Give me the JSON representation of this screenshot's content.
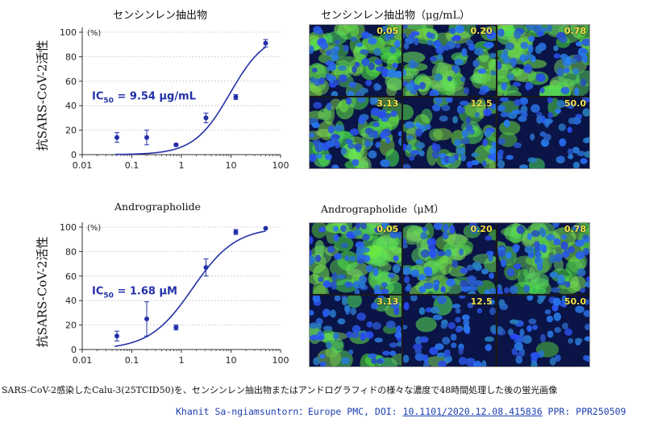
{
  "panels": [
    {
      "chart_title": "センシンレン抽出物",
      "ylabel": "抗SARS-CoV-2活性",
      "ic50_prefix": "IC",
      "ic50_sub": "50",
      "ic50_value": " = 9.54 µg/mL",
      "image_title": "センシンレン抽出物（μg/mL）",
      "image_labels": [
        "0.05",
        "0.20",
        "0.78",
        "3.13",
        "12.5",
        "50.0"
      ],
      "image_inhibition": [
        0.15,
        0.15,
        0.1,
        0.3,
        0.5,
        0.92
      ]
    },
    {
      "chart_title": "Andrographolide",
      "ylabel": "抗SARS-CoV-2活性",
      "ic50_prefix": "IC",
      "ic50_sub": "50",
      "ic50_value": " = 1.68 µM",
      "image_title": "Andrographolide（μM）",
      "image_labels": [
        "0.05",
        "0.20",
        "0.78",
        "3.13",
        "12.5",
        "50.0"
      ],
      "image_inhibition": [
        0.12,
        0.25,
        0.2,
        0.65,
        0.95,
        0.99
      ]
    }
  ],
  "chart_data": [
    {
      "type": "scatter",
      "title": "センシンレン抽出物",
      "ylabel": "抗SARS-CoV-2活性",
      "y_unit": "(%)",
      "xscale": "log",
      "xlim": [
        0.01,
        100
      ],
      "ylim": [
        0,
        100
      ],
      "xticks": [
        "0.01",
        "0.1",
        "1",
        "10",
        "100"
      ],
      "yticks": [
        "0",
        "20",
        "40",
        "60",
        "80",
        "100"
      ],
      "points": [
        {
          "x": 0.05,
          "y": 14,
          "err": 4
        },
        {
          "x": 0.2,
          "y": 14,
          "err": 6
        },
        {
          "x": 0.78,
          "y": 8,
          "err": 1
        },
        {
          "x": 3.13,
          "y": 30,
          "err": 4
        },
        {
          "x": 12.5,
          "y": 47,
          "err": 2
        },
        {
          "x": 50,
          "y": 91,
          "err": 3
        }
      ],
      "fit": {
        "bottom": 0,
        "top": 100,
        "ic50": 9.54,
        "hill": 1.2,
        "xmin": 0.045,
        "xmax": 50
      },
      "annotation": "IC50 = 9.54 µg/mL",
      "grid": true
    },
    {
      "type": "scatter",
      "title": "Andrographolide",
      "ylabel": "抗SARS-CoV-2活性",
      "y_unit": "(%)",
      "xscale": "log",
      "xlim": [
        0.01,
        100
      ],
      "ylim": [
        0,
        100
      ],
      "xticks": [
        "0.01",
        "0.1",
        "1",
        "10",
        "100"
      ],
      "yticks": [
        "0",
        "20",
        "40",
        "60",
        "80",
        "100"
      ],
      "points": [
        {
          "x": 0.05,
          "y": 11,
          "err": 4
        },
        {
          "x": 0.2,
          "y": 25,
          "err": 14
        },
        {
          "x": 0.78,
          "y": 18,
          "err": 2
        },
        {
          "x": 3.13,
          "y": 67,
          "err": 7
        },
        {
          "x": 12.5,
          "y": 96,
          "err": 2
        },
        {
          "x": 50,
          "y": 99,
          "err": 0
        }
      ],
      "fit": {
        "bottom": 0,
        "top": 100,
        "ic50": 1.68,
        "hill": 1.0,
        "xmin": 0.045,
        "xmax": 50
      },
      "annotation": "IC50 = 1.68 µM",
      "grid": true
    }
  ],
  "caption": "SARS-CoV-2感染したCalu-3(25TCID50)を、センシンレン抽出物またはアンドログラフィドの様々な濃度で48時間処理した後の蛍光画像",
  "credit": {
    "prefix": "Khanit Sa-ngiamsuntorn：Europe PMC, DOI: ",
    "doi": "10.1101/2020.12.08.415836",
    "suffix": " PPR: PPR250509"
  },
  "colors": {
    "series": "#2330a8",
    "cell_label": "#f5e24a",
    "nuclei": "#2a4de0",
    "infected": "#4fd84a"
  }
}
